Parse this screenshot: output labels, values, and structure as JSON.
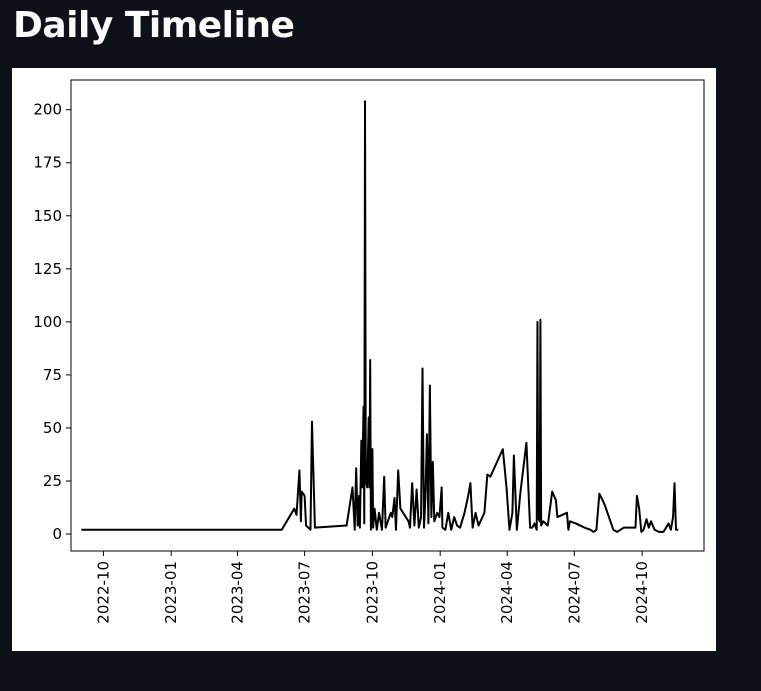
{
  "page": {
    "title": "Daily Timeline"
  },
  "colors": {
    "background": "#0e1117",
    "title_text": "#fafafa",
    "figure_background": "#ffffff",
    "line": "#000000"
  },
  "chart_data": {
    "type": "line",
    "title": "",
    "xlabel": "",
    "ylabel": "",
    "grid": false,
    "legend": "none",
    "x_axis": {
      "type": "date",
      "range": [
        "2022-08-18",
        "2024-12-24"
      ],
      "ticks": [
        "2022-10",
        "2023-01",
        "2023-04",
        "2023-07",
        "2023-10",
        "2024-01",
        "2024-04",
        "2024-07",
        "2024-10"
      ],
      "tick_label_rotation": 90
    },
    "y_axis": {
      "range": [
        -8,
        214
      ],
      "ticks": [
        0,
        25,
        50,
        75,
        100,
        125,
        150,
        175,
        200
      ]
    },
    "series": [
      {
        "color": "#000000",
        "points": [
          [
            "2022-09-01",
            2
          ],
          [
            "2023-05-31",
            2
          ],
          [
            "2023-06-17",
            12
          ],
          [
            "2023-06-20",
            9
          ],
          [
            "2023-06-24",
            30
          ],
          [
            "2023-06-26",
            6
          ],
          [
            "2023-06-27",
            20
          ],
          [
            "2023-07-01",
            18
          ],
          [
            "2023-07-03",
            4
          ],
          [
            "2023-07-09",
            2
          ],
          [
            "2023-07-11",
            53
          ],
          [
            "2023-07-15",
            3
          ],
          [
            "2023-08-27",
            4
          ],
          [
            "2023-09-04",
            22
          ],
          [
            "2023-09-07",
            2
          ],
          [
            "2023-09-09",
            31
          ],
          [
            "2023-09-11",
            4
          ],
          [
            "2023-09-13",
            18
          ],
          [
            "2023-09-14",
            3
          ],
          [
            "2023-09-16",
            44
          ],
          [
            "2023-09-17",
            22
          ],
          [
            "2023-09-19",
            60
          ],
          [
            "2023-09-20",
            5
          ],
          [
            "2023-09-21",
            204
          ],
          [
            "2023-09-22",
            25
          ],
          [
            "2023-09-24",
            22
          ],
          [
            "2023-09-26",
            55
          ],
          [
            "2023-09-27",
            22
          ],
          [
            "2023-09-28",
            82
          ],
          [
            "2023-09-29",
            2
          ],
          [
            "2023-10-01",
            40
          ],
          [
            "2023-10-02",
            3
          ],
          [
            "2023-10-04",
            12
          ],
          [
            "2023-10-07",
            2
          ],
          [
            "2023-10-10",
            10
          ],
          [
            "2023-10-14",
            2
          ],
          [
            "2023-10-17",
            27
          ],
          [
            "2023-10-19",
            3
          ],
          [
            "2023-10-22",
            6
          ],
          [
            "2023-10-26",
            10
          ],
          [
            "2023-10-28",
            8
          ],
          [
            "2023-10-31",
            17
          ],
          [
            "2023-11-02",
            2
          ],
          [
            "2023-11-05",
            30
          ],
          [
            "2023-11-08",
            12
          ],
          [
            "2023-11-19",
            6
          ],
          [
            "2023-11-21",
            3
          ],
          [
            "2023-11-24",
            24
          ],
          [
            "2023-11-27",
            4
          ],
          [
            "2023-11-30",
            21
          ],
          [
            "2023-12-03",
            3
          ],
          [
            "2023-12-06",
            8
          ],
          [
            "2023-12-08",
            78
          ],
          [
            "2023-12-10",
            3
          ],
          [
            "2023-12-12",
            18
          ],
          [
            "2023-12-14",
            47
          ],
          [
            "2023-12-16",
            5
          ],
          [
            "2023-12-18",
            70
          ],
          [
            "2023-12-20",
            8
          ],
          [
            "2023-12-22",
            34
          ],
          [
            "2023-12-24",
            6
          ],
          [
            "2023-12-28",
            10
          ],
          [
            "2023-12-31",
            8
          ],
          [
            "2024-01-03",
            22
          ],
          [
            "2024-01-04",
            3
          ],
          [
            "2024-01-08",
            2
          ],
          [
            "2024-01-12",
            10
          ],
          [
            "2024-01-16",
            2
          ],
          [
            "2024-01-20",
            8
          ],
          [
            "2024-01-24",
            4
          ],
          [
            "2024-01-28",
            3
          ],
          [
            "2024-02-03",
            10
          ],
          [
            "2024-02-08",
            18
          ],
          [
            "2024-02-11",
            24
          ],
          [
            "2024-02-14",
            3
          ],
          [
            "2024-02-18",
            10
          ],
          [
            "2024-02-22",
            4
          ],
          [
            "2024-03-01",
            10
          ],
          [
            "2024-03-05",
            28
          ],
          [
            "2024-03-09",
            27
          ],
          [
            "2024-03-26",
            40
          ],
          [
            "2024-03-31",
            22
          ],
          [
            "2024-04-04",
            2
          ],
          [
            "2024-04-08",
            10
          ],
          [
            "2024-04-10",
            37
          ],
          [
            "2024-04-14",
            2
          ],
          [
            "2024-04-19",
            20
          ],
          [
            "2024-04-27",
            43
          ],
          [
            "2024-05-02",
            3
          ],
          [
            "2024-05-05",
            3
          ],
          [
            "2024-05-08",
            5
          ],
          [
            "2024-05-11",
            2
          ],
          [
            "2024-05-12",
            100
          ],
          [
            "2024-05-13",
            8
          ],
          [
            "2024-05-15",
            6
          ],
          [
            "2024-05-16",
            101
          ],
          [
            "2024-05-17",
            4
          ],
          [
            "2024-05-20",
            6
          ],
          [
            "2024-05-26",
            4
          ],
          [
            "2024-06-01",
            20
          ],
          [
            "2024-06-06",
            16
          ],
          [
            "2024-06-08",
            8
          ],
          [
            "2024-06-21",
            10
          ],
          [
            "2024-06-23",
            2
          ],
          [
            "2024-06-25",
            6
          ],
          [
            "2024-07-03",
            5
          ],
          [
            "2024-07-09",
            4
          ],
          [
            "2024-07-15",
            3
          ],
          [
            "2024-07-23",
            2
          ],
          [
            "2024-07-27",
            1
          ],
          [
            "2024-07-31",
            2
          ],
          [
            "2024-08-04",
            19
          ],
          [
            "2024-08-11",
            14
          ],
          [
            "2024-08-23",
            2
          ],
          [
            "2024-08-28",
            1
          ],
          [
            "2024-09-06",
            3
          ],
          [
            "2024-09-16",
            3
          ],
          [
            "2024-09-22",
            3
          ],
          [
            "2024-09-24",
            18
          ],
          [
            "2024-09-27",
            12
          ],
          [
            "2024-09-30",
            1
          ],
          [
            "2024-10-03",
            2
          ],
          [
            "2024-10-07",
            7
          ],
          [
            "2024-10-10",
            3
          ],
          [
            "2024-10-13",
            6
          ],
          [
            "2024-10-18",
            2
          ],
          [
            "2024-10-24",
            1
          ],
          [
            "2024-10-30",
            1
          ],
          [
            "2024-11-06",
            5
          ],
          [
            "2024-11-09",
            2
          ],
          [
            "2024-11-12",
            8
          ],
          [
            "2024-11-14",
            24
          ],
          [
            "2024-11-16",
            2
          ],
          [
            "2024-11-19",
            2
          ]
        ]
      }
    ]
  }
}
